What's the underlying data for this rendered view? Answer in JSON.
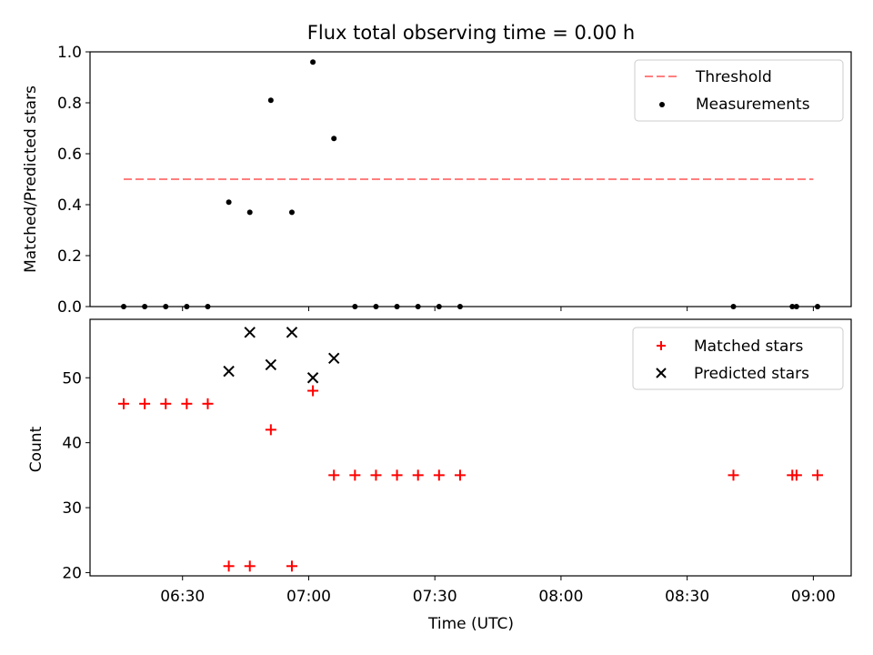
{
  "chart_data": [
    {
      "type": "scatter",
      "title": "Flux total observing time = 0.00 h",
      "xlabel": "",
      "ylabel": "Matched/Predicted stars",
      "ylim": [
        0,
        1.0
      ],
      "yticks": [
        "0.0",
        "0.2",
        "0.4",
        "0.6",
        "0.8",
        "1.0"
      ],
      "grid": false,
      "legend_position": "top-right",
      "threshold": {
        "name": "Threshold",
        "value": 0.5,
        "color": "#ff7f7f",
        "style": "dashed",
        "x_start": "06:16",
        "x_end": "09:00"
      },
      "series": [
        {
          "name": "Measurements",
          "color": "#000000",
          "marker": "dot",
          "x": [
            "06:16",
            "06:21",
            "06:26",
            "06:31",
            "06:36",
            "06:41",
            "06:46",
            "06:51",
            "06:56",
            "07:01",
            "07:06",
            "07:11",
            "07:16",
            "07:21",
            "07:26",
            "07:31",
            "07:36",
            "08:41",
            "08:55",
            "08:56",
            "09:01"
          ],
          "values": [
            0,
            0,
            0,
            0,
            0,
            0.41,
            0.37,
            0.81,
            0.37,
            0.96,
            0.66,
            0,
            0,
            0,
            0,
            0,
            0,
            0,
            0,
            0,
            0
          ]
        }
      ]
    },
    {
      "type": "scatter",
      "title": "",
      "xlabel": "Time (UTC)",
      "ylabel": "Count",
      "ylim": [
        19.5,
        59
      ],
      "yticks": [
        "20",
        "30",
        "40",
        "50"
      ],
      "xticks": [
        "06:30",
        "07:00",
        "07:30",
        "08:00",
        "08:30",
        "09:00"
      ],
      "xlim": [
        "06:08",
        "09:09"
      ],
      "grid": false,
      "legend_position": "top-right",
      "series": [
        {
          "name": "Matched stars",
          "color": "#ff0000",
          "marker": "plus",
          "x": [
            "06:16",
            "06:21",
            "06:26",
            "06:31",
            "06:36",
            "06:41",
            "06:46",
            "06:51",
            "06:56",
            "07:01",
            "07:06",
            "07:11",
            "07:16",
            "07:21",
            "07:26",
            "07:31",
            "07:36",
            "08:41",
            "08:55",
            "08:56",
            "09:01"
          ],
          "values": [
            46,
            46,
            46,
            46,
            46,
            21,
            21,
            42,
            21,
            48,
            35,
            35,
            35,
            35,
            35,
            35,
            35,
            35,
            35,
            35,
            35
          ]
        },
        {
          "name": "Predicted stars",
          "color": "#000000",
          "marker": "x",
          "x": [
            "06:41",
            "06:46",
            "06:51",
            "06:56",
            "07:01",
            "07:06"
          ],
          "values": [
            51,
            57,
            52,
            57,
            50,
            53
          ]
        }
      ]
    }
  ]
}
